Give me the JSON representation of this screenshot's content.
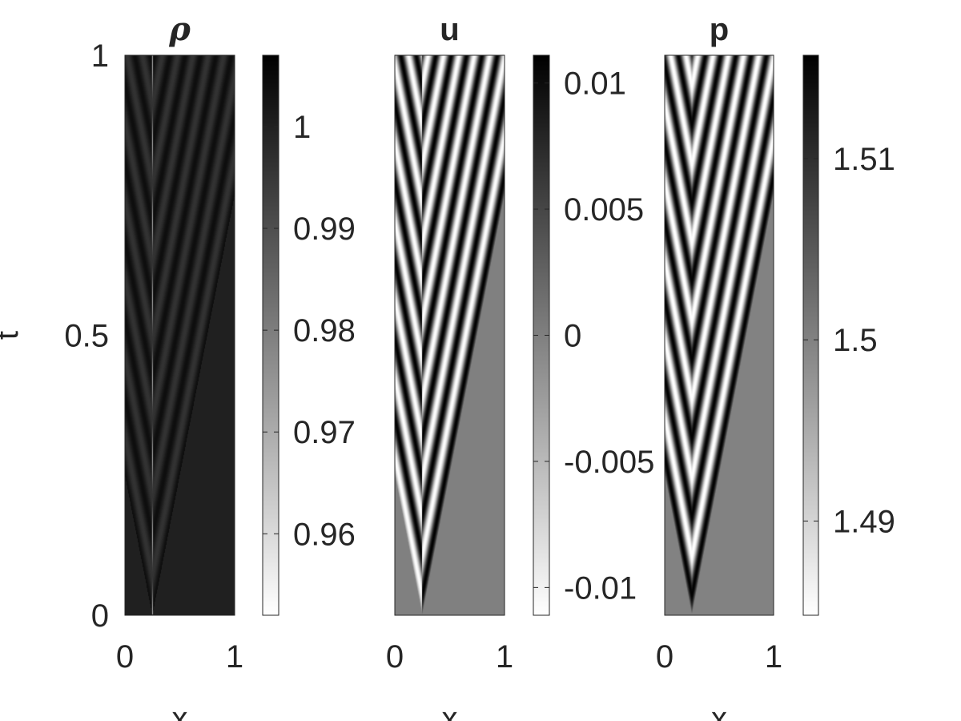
{
  "chart_data": [
    {
      "type": "heatmap",
      "title": "ρ",
      "xlabel": "x",
      "ylabel": "t",
      "xlim": [
        0,
        1
      ],
      "ylim": [
        0,
        1
      ],
      "xticks": [
        0,
        1
      ],
      "xtick_labels": [
        "0",
        "1"
      ],
      "yticks": [
        0,
        0.5,
        1
      ],
      "ytick_labels": [
        "0",
        "0.5",
        "1"
      ],
      "colormap": "gray-reversed",
      "clim": [
        0.952,
        1.007
      ],
      "colorbar_ticks": [
        1.0,
        0.99,
        0.98,
        0.97,
        0.96
      ],
      "colorbar_tick_labels": [
        "1",
        "0.99",
        "0.98",
        "0.97",
        "0.96"
      ],
      "pattern": {
        "source_x": 0.25,
        "wave_speed": 1.0,
        "wave_period": 0.14,
        "background_value": 1.0,
        "amplitude": 0.004,
        "center_spike_value": 0.955,
        "description_values": "base state 1.0 ahead of the fronts, oscillating wave train behind"
      }
    },
    {
      "type": "heatmap",
      "title": "u",
      "xlabel": "x",
      "ylabel": "",
      "xlim": [
        0,
        1
      ],
      "ylim": [
        0,
        1
      ],
      "xticks": [
        0,
        1
      ],
      "xtick_labels": [
        "0",
        "1"
      ],
      "colormap": "gray-reversed",
      "clim": [
        -0.0111,
        0.0111
      ],
      "colorbar_ticks": [
        0.01,
        0.005,
        0,
        -0.005,
        -0.01
      ],
      "colorbar_tick_labels": [
        "0.01",
        "0.005",
        "0",
        "-0.005",
        "-0.01"
      ],
      "pattern": {
        "source_x": 0.25,
        "wave_speed": 1.0,
        "wave_period": 0.14,
        "background_value": 0,
        "amplitude": 0.011
      }
    },
    {
      "type": "heatmap",
      "title": "p",
      "xlabel": "x",
      "ylabel": "",
      "xlim": [
        0,
        1
      ],
      "ylim": [
        0,
        1
      ],
      "xticks": [
        0,
        1
      ],
      "xtick_labels": [
        "0",
        "1"
      ],
      "colormap": "gray-reversed",
      "clim": [
        1.4848,
        1.5157
      ],
      "colorbar_ticks": [
        1.51,
        1.5,
        1.49
      ],
      "colorbar_tick_labels": [
        "1.51",
        "1.5",
        "1.49"
      ],
      "pattern": {
        "source_x": 0.25,
        "wave_speed": 1.0,
        "wave_period": 0.14,
        "background_value": 1.5,
        "amplitude": 0.0155
      }
    }
  ]
}
